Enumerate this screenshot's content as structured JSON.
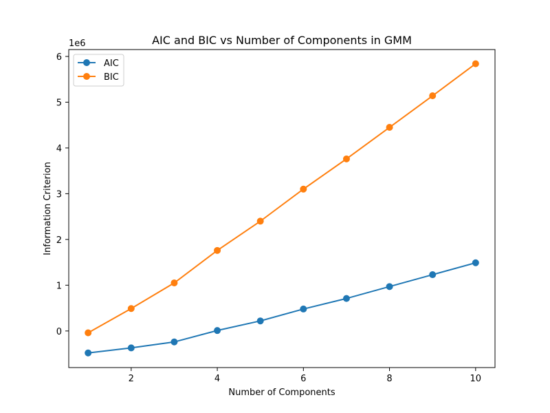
{
  "chart_data": {
    "type": "line",
    "title": "AIC and BIC vs Number of Components in GMM",
    "xlabel": "Number of Components",
    "ylabel": "Information Criterion",
    "y_offset_label": "1e6",
    "x": [
      1,
      2,
      3,
      4,
      5,
      6,
      7,
      8,
      9,
      10
    ],
    "xlim": [
      0.55,
      10.45
    ],
    "ylim": [
      -800000,
      6150000
    ],
    "x_ticks": [
      2,
      4,
      6,
      8,
      10
    ],
    "y_ticks": [
      0,
      1000000,
      2000000,
      3000000,
      4000000,
      5000000,
      6000000
    ],
    "y_tick_labels": [
      "0",
      "1",
      "2",
      "3",
      "4",
      "5",
      "6"
    ],
    "grid": false,
    "legend_position": "top-left",
    "series": [
      {
        "name": "AIC",
        "color": "#1f77b4",
        "values": [
          -480000,
          -370000,
          -240000,
          10000,
          220000,
          480000,
          710000,
          970000,
          1230000,
          1490000
        ]
      },
      {
        "name": "BIC",
        "color": "#ff7f0e",
        "values": [
          -40000,
          490000,
          1050000,
          1760000,
          2400000,
          3100000,
          3760000,
          4450000,
          5140000,
          5840000
        ]
      }
    ]
  }
}
